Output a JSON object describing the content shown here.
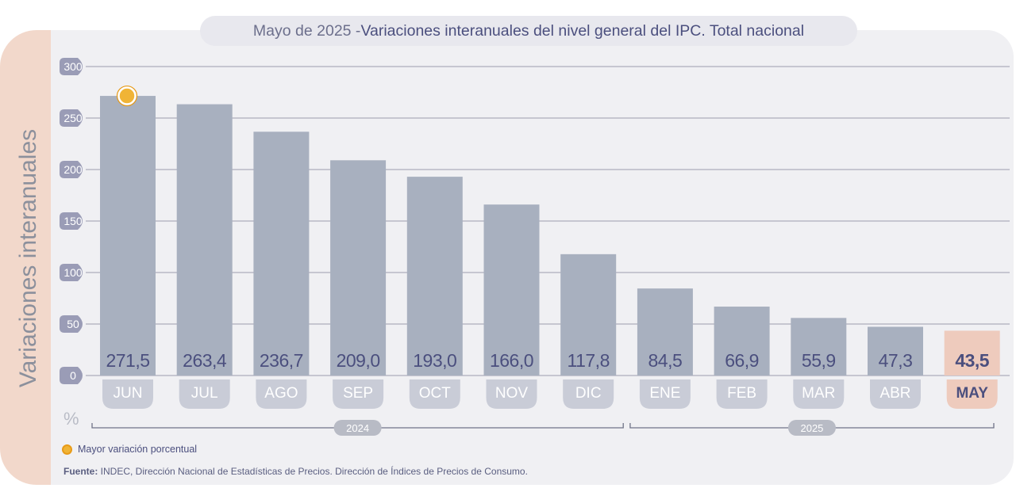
{
  "title": {
    "prefix": "Mayo de 2025 - ",
    "main": "Variaciones interanuales del nivel general del IPC. Total nacional"
  },
  "y_axis_label": "Variaciones interanuales",
  "unit": "%",
  "legend": {
    "label": "Mayor variación porcentual",
    "color": "#f0b436"
  },
  "source": {
    "label": "Fuente:",
    "text": " INDEC, Dirección Nacional de Estadísticas de Precios. Dirección de Índices de Precios de Consumo."
  },
  "colors": {
    "bar": "#a8b0bf",
    "highlight_bar": "#eecbbd",
    "tick_badge": "#9a9cb6",
    "month_pill": "#c9ccd7",
    "highlight_month_pill": "#eecbbd",
    "grid": "#9b9bae",
    "value_text": "#4b4f7e"
  },
  "chart_data": {
    "type": "bar",
    "categories": [
      "JUN",
      "JUL",
      "AGO",
      "SEP",
      "OCT",
      "NOV",
      "DIC",
      "ENE",
      "FEB",
      "MAR",
      "ABR",
      "MAY"
    ],
    "values": [
      271.5,
      263.4,
      236.7,
      209.0,
      193.0,
      166.0,
      117.8,
      84.5,
      66.9,
      55.9,
      47.3,
      43.5
    ],
    "value_labels": [
      "271,5",
      "263,4",
      "236,7",
      "209,0",
      "193,0",
      "166,0",
      "117,8",
      "84,5",
      "66,9",
      "55,9",
      "47,3",
      "43,5"
    ],
    "highlight_index": 11,
    "max_marker_index": 0,
    "yticks": [
      0,
      50,
      100,
      150,
      200,
      250,
      300
    ],
    "ylim": [
      0,
      300
    ],
    "grid": true,
    "year_groups": [
      {
        "label": "2024",
        "start_index": 0,
        "end_index": 6
      },
      {
        "label": "2025",
        "start_index": 7,
        "end_index": 11
      }
    ]
  }
}
